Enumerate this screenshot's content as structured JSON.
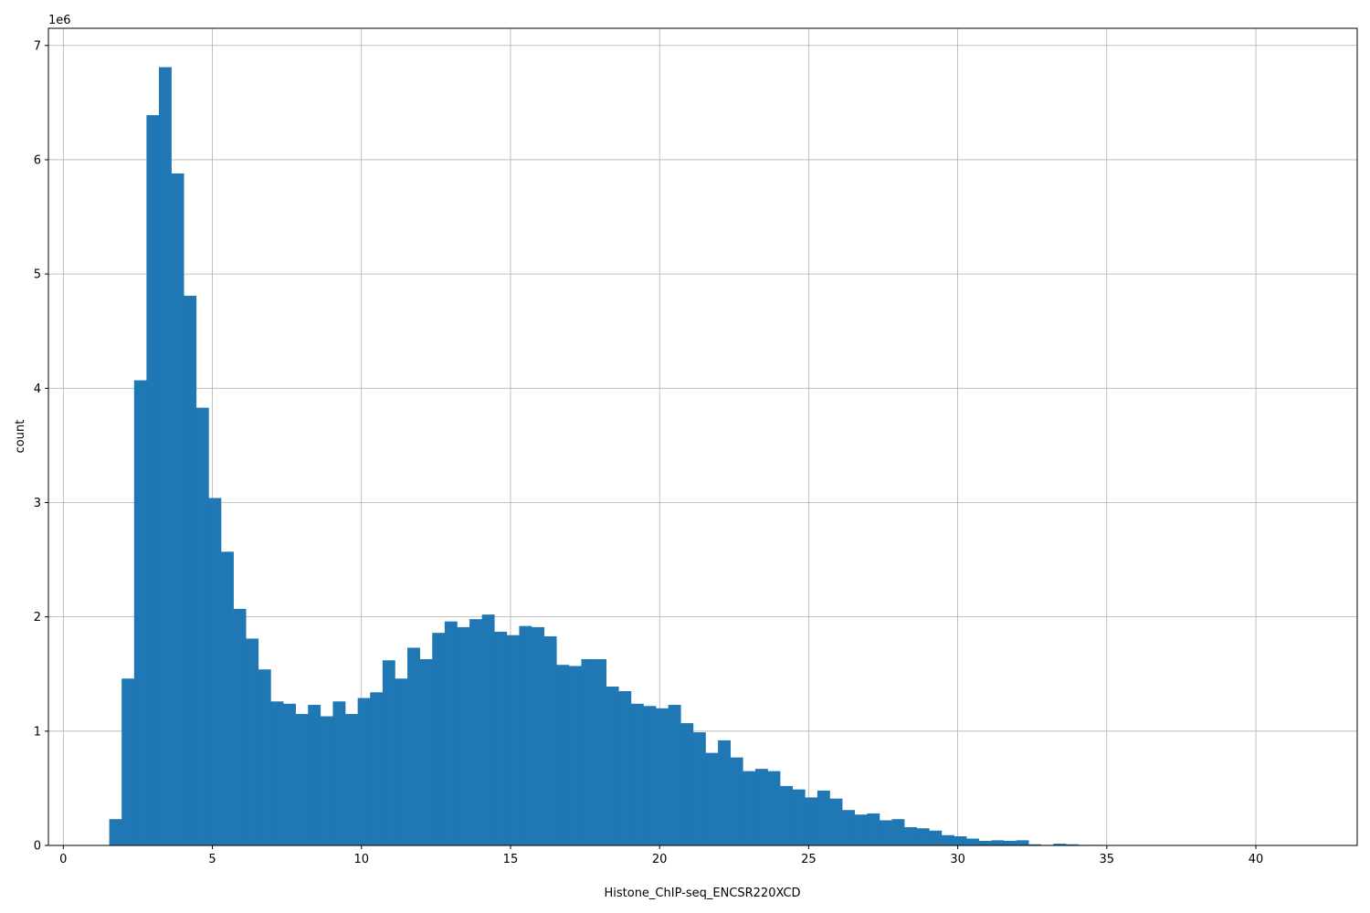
{
  "chart_data": {
    "type": "bar",
    "subtype": "histogram",
    "xlabel": "Histone_ChIP-seq_ENCSR220XCD",
    "ylabel": "count",
    "y_multiplier_label": "1e6",
    "xlim": [
      -0.5,
      43.4
    ],
    "ylim": [
      0,
      7.15
    ],
    "y_unit_scale": 1000000,
    "x_ticks": [
      0,
      5,
      10,
      15,
      20,
      25,
      30,
      35,
      40
    ],
    "y_ticks": [
      0,
      1,
      2,
      3,
      4,
      5,
      6,
      7
    ],
    "grid": true,
    "bar_color": "#1f77b4",
    "bin_width": 0.4167,
    "bin_start": 1.54,
    "values": [
      0.23,
      1.46,
      4.07,
      6.39,
      6.81,
      5.88,
      4.81,
      3.83,
      3.04,
      2.57,
      2.07,
      1.81,
      1.54,
      1.26,
      1.24,
      1.15,
      1.23,
      1.13,
      1.26,
      1.15,
      1.29,
      1.34,
      1.62,
      1.46,
      1.73,
      1.63,
      1.86,
      1.96,
      1.91,
      1.98,
      2.02,
      1.87,
      1.84,
      1.92,
      1.91,
      1.83,
      1.58,
      1.57,
      1.63,
      1.63,
      1.39,
      1.35,
      1.24,
      1.22,
      1.2,
      1.23,
      1.07,
      0.99,
      0.81,
      0.92,
      0.77,
      0.65,
      0.67,
      0.65,
      0.52,
      0.49,
      0.42,
      0.48,
      0.41,
      0.31,
      0.27,
      0.28,
      0.22,
      0.23,
      0.16,
      0.15,
      0.13,
      0.09,
      0.08,
      0.06,
      0.04,
      0.045,
      0.04,
      0.045,
      0.01,
      0.005,
      0.015,
      0.01,
      0.005,
      0.005
    ]
  }
}
